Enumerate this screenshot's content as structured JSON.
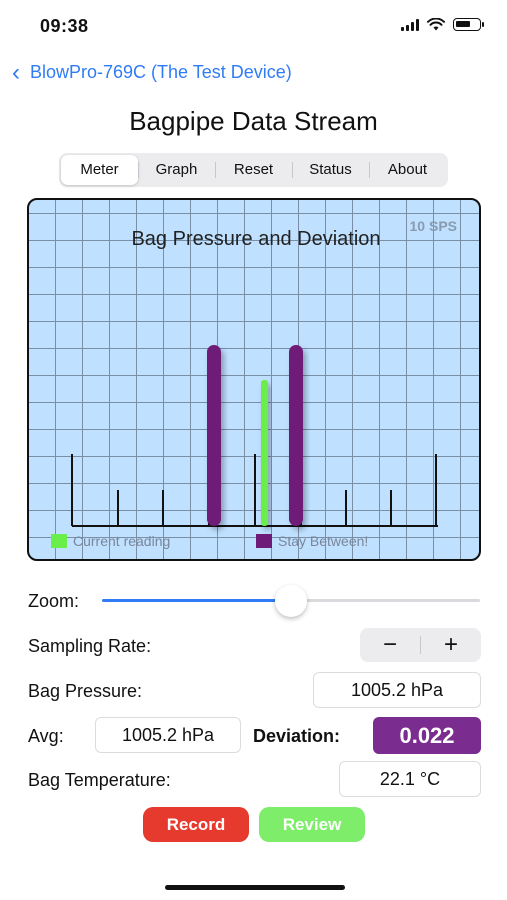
{
  "status_bar": {
    "time": "09:38"
  },
  "nav": {
    "back_label": "BlowPro-769C (The Test Device)"
  },
  "title": "Bagpipe Data Stream",
  "tabs": [
    {
      "label": "Meter",
      "selected": true
    },
    {
      "label": "Graph",
      "selected": false
    },
    {
      "label": "Reset",
      "selected": false
    },
    {
      "label": "Status",
      "selected": false
    },
    {
      "label": "About",
      "selected": false
    }
  ],
  "meter": {
    "title": "Bag Pressure and Deviation",
    "rate_badge": "10 SPS",
    "legend": {
      "current": "Current reading",
      "stay_between": "Stay Between!"
    },
    "colors": {
      "current": "#6aee4a",
      "stay_between": "#6e1a78",
      "background": "#bfe0ff"
    }
  },
  "controls": {
    "zoom_label": "Zoom:",
    "zoom_value": 0.5,
    "sampling_rate_label": "Sampling Rate:",
    "stepper_minus": "−",
    "stepper_plus": "+",
    "bag_pressure_label": "Bag Pressure:",
    "bag_pressure_value": "1005.2 hPa",
    "avg_label": "Avg:",
    "avg_value": "1005.2 hPa",
    "deviation_label": "Deviation:",
    "deviation_value": "0.022",
    "bag_temp_label": "Bag Temperature:",
    "bag_temp_value": "22.1 °C"
  },
  "buttons": {
    "record": "Record",
    "review": "Review"
  }
}
